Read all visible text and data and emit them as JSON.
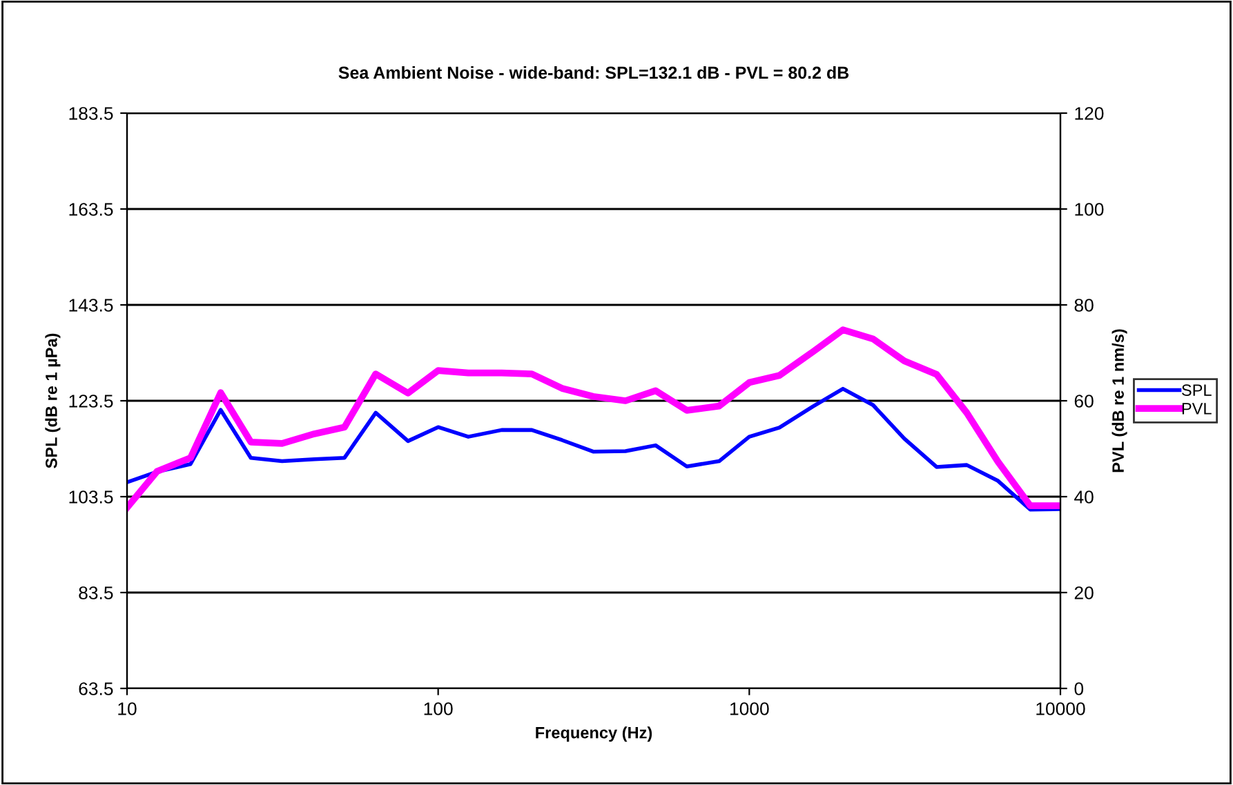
{
  "chart_data": {
    "type": "line",
    "title": "Sea Ambient Noise - wide-band: SPL=132.1 dB - PVL = 80.2 dB",
    "xlabel": "Frequency (Hz)",
    "ylabel": "SPL (dB re 1 µPa)",
    "y2label": "PVL (dB re 1 nm/s)",
    "x": [
      10,
      12.5,
      16,
      20,
      25,
      31.5,
      40,
      50,
      63,
      80,
      100,
      125,
      160,
      200,
      250,
      315,
      400,
      500,
      630,
      800,
      1000,
      1250,
      1600,
      2000,
      2500,
      3150,
      4000,
      5000,
      6300,
      8000,
      10000
    ],
    "series": [
      {
        "name": "SPL",
        "color": "#0000ff",
        "values": [
          106.5,
          108.7,
          110.3,
          121.6,
          111.6,
          110.9,
          111.3,
          111.6,
          121.0,
          115.1,
          118.0,
          116.0,
          117.4,
          117.4,
          115.3,
          112.9,
          113.0,
          114.2,
          109.8,
          110.9,
          116.0,
          117.9,
          122.3,
          126.0,
          122.6,
          115.6,
          109.7,
          110.1,
          106.8,
          100.8,
          100.9
        ]
      },
      {
        "name": "PVL",
        "color": "#ff00ff",
        "axis": "y2",
        "values": [
          37.7,
          45.3,
          48.1,
          61.7,
          51.4,
          51.1,
          53.1,
          54.5,
          65.6,
          61.6,
          66.3,
          65.8,
          65.8,
          65.6,
          62.6,
          60.9,
          60.0,
          62.1,
          58.0,
          58.9,
          63.8,
          65.3,
          70.2,
          74.8,
          72.9,
          68.3,
          65.5,
          57.5,
          47.3,
          38.1,
          38.1
        ]
      }
    ],
    "log": "x",
    "xlim": [
      10,
      10000
    ],
    "xticks": [
      10,
      100,
      1000,
      10000
    ],
    "ylim": [
      63.5,
      183.5
    ],
    "yticks": [
      63.5,
      83.5,
      103.5,
      123.5,
      143.5,
      163.5,
      183.5
    ],
    "y2lim": [
      0,
      120
    ],
    "y2ticks": [
      0,
      20,
      40,
      60,
      80,
      100,
      120
    ],
    "grid": "y",
    "legend": "right",
    "marker": "none",
    "line_style": "solid"
  }
}
